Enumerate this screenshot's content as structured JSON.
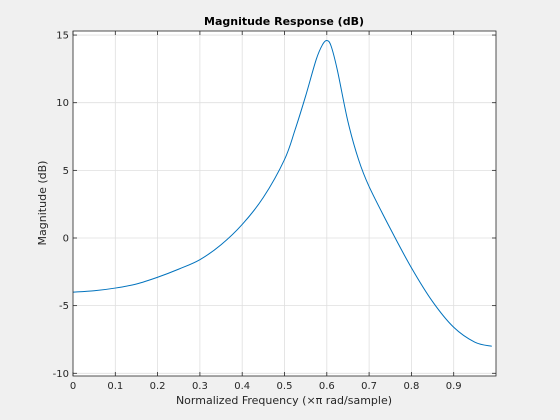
{
  "chart_data": {
    "type": "line",
    "title": "Magnitude Response (dB)",
    "xlabel": "Normalized Frequency (×π rad/sample)",
    "ylabel": "Magnitude (dB)",
    "xlim": [
      0,
      1
    ],
    "ylim": [
      -10.2,
      15.3
    ],
    "xticks": [
      0,
      0.1,
      0.2,
      0.3,
      0.4,
      0.5,
      0.6,
      0.7,
      0.8,
      0.9
    ],
    "xtick_labels": [
      "0",
      "0.1",
      "0.2",
      "0.3",
      "0.4",
      "0.5",
      "0.6",
      "0.7",
      "0.8",
      "0.9"
    ],
    "yticks": [
      -10,
      -5,
      0,
      5,
      10,
      15
    ],
    "ytick_labels": [
      "-10",
      "-5",
      "0",
      "5",
      "10",
      "15"
    ],
    "grid": true,
    "series": [
      {
        "color": "#0072bd",
        "x": [
          0,
          0.05,
          0.1,
          0.15,
          0.2,
          0.25,
          0.3,
          0.35,
          0.4,
          0.45,
          0.5,
          0.525,
          0.55,
          0.575,
          0.59,
          0.6,
          0.61,
          0.625,
          0.65,
          0.675,
          0.7,
          0.75,
          0.8,
          0.85,
          0.9,
          0.95,
          0.99
        ],
        "y": [
          -4.0,
          -3.9,
          -3.7,
          -3.4,
          -2.9,
          -2.3,
          -1.6,
          -0.5,
          1.0,
          3.0,
          5.8,
          8.0,
          10.5,
          13.2,
          14.3,
          14.6,
          14.2,
          12.4,
          8.6,
          5.8,
          3.8,
          0.7,
          -2.2,
          -4.7,
          -6.6,
          -7.7,
          -8.0
        ]
      }
    ]
  }
}
